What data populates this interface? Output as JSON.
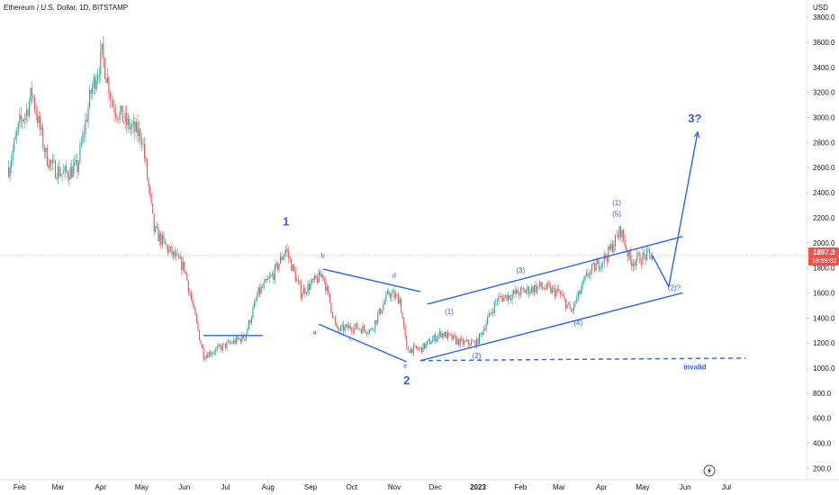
{
  "header": {
    "title": "Ethereum / U.S. Dollar, 1D, BITSTAMP",
    "currency": "USD"
  },
  "price_tag": {
    "price": "1897.3",
    "countdown": "19:59:02"
  },
  "colors": {
    "up": "#26a69a",
    "down": "#ef5350",
    "drawing": "#2962ff",
    "price_tag": "#ef5350"
  },
  "icons": {
    "bottom_marker": "lightning-icon"
  },
  "chart_data": {
    "type": "candlestick",
    "symbol": "Ethereum / U.S. Dollar",
    "interval": "1D",
    "exchange": "BITSTAMP",
    "x_tick_labels": [
      "Feb",
      "Mar",
      "Apr",
      "May",
      "Jun",
      "Jul",
      "Aug",
      "Sep",
      "Oct",
      "Nov",
      "Dec",
      "2023",
      "Feb",
      "Mar",
      "Apr",
      "May",
      "Jun",
      "Jul"
    ],
    "y_tick_labels": [
      "200.0",
      "400.0",
      "600.0",
      "800.0",
      "1000.0",
      "1200.0",
      "1400.0",
      "1600.0",
      "1800.0",
      "2000.0",
      "2200.0",
      "2400.0",
      "2600.0",
      "2800.0",
      "3000.0",
      "3200.0",
      "3400.0",
      "3600.0",
      "3800.0"
    ],
    "ylim": [
      100,
      3900
    ],
    "last_price": 1897.3,
    "grid": false,
    "price_path": [
      [
        "2022-01-24",
        2600
      ],
      [
        "2022-02-01",
        2950
      ],
      [
        "2022-02-06",
        3050
      ],
      [
        "2022-02-10",
        3200
      ],
      [
        "2022-02-20",
        2700
      ],
      [
        "2022-02-25",
        2600
      ],
      [
        "2022-03-05",
        2550
      ],
      [
        "2022-03-15",
        2600
      ],
      [
        "2022-03-25",
        3200
      ],
      [
        "2022-04-02",
        3500
      ],
      [
        "2022-04-10",
        3100
      ],
      [
        "2022-04-20",
        2950
      ],
      [
        "2022-05-01",
        2850
      ],
      [
        "2022-05-10",
        2100
      ],
      [
        "2022-05-20",
        1950
      ],
      [
        "2022-06-01",
        1800
      ],
      [
        "2022-06-15",
        1100
      ],
      [
        "2022-06-25",
        1150
      ],
      [
        "2022-07-05",
        1200
      ],
      [
        "2022-07-15",
        1250
      ],
      [
        "2022-07-25",
        1600
      ],
      [
        "2022-08-05",
        1750
      ],
      [
        "2022-08-14",
        1950
      ],
      [
        "2022-08-25",
        1600
      ],
      [
        "2022-09-10",
        1750
      ],
      [
        "2022-09-20",
        1300
      ],
      [
        "2022-10-01",
        1330
      ],
      [
        "2022-10-15",
        1300
      ],
      [
        "2022-10-28",
        1600
      ],
      [
        "2022-11-05",
        1550
      ],
      [
        "2022-11-10",
        1150
      ],
      [
        "2022-11-20",
        1150
      ],
      [
        "2022-12-05",
        1280
      ],
      [
        "2022-12-20",
        1200
      ],
      [
        "2022-12-31",
        1200
      ],
      [
        "2023-01-15",
        1550
      ],
      [
        "2023-01-30",
        1600
      ],
      [
        "2023-02-15",
        1650
      ],
      [
        "2023-03-01",
        1600
      ],
      [
        "2023-03-10",
        1450
      ],
      [
        "2023-03-22",
        1750
      ],
      [
        "2023-04-05",
        1900
      ],
      [
        "2023-04-15",
        2100
      ],
      [
        "2023-04-22",
        1850
      ],
      [
        "2023-05-05",
        1900
      ],
      [
        "2023-05-08",
        1897.3
      ]
    ],
    "annotations": {
      "elliott_labels": [
        {
          "text": "1",
          "date": "2022-08-14",
          "price": 2140
        },
        {
          "text": "2",
          "date": "2022-11-10",
          "price": 870
        },
        {
          "text": "b",
          "date": "2022-09-10",
          "price": 1880
        },
        {
          "text": "d",
          "date": "2022-11-01",
          "price": 1720
        },
        {
          "text": "a",
          "date": "2022-09-04",
          "price": 1270
        },
        {
          "text": "c",
          "date": "2022-09-30",
          "price": 1220
        },
        {
          "text": "e",
          "date": "2022-11-09",
          "price": 1000
        },
        {
          "text": "(1)",
          "date": "2022-12-11",
          "price": 1430
        },
        {
          "text": "(2)",
          "date": "2022-12-31",
          "price": 1080
        },
        {
          "text": "(3)",
          "date": "2023-02-01",
          "price": 1760
        },
        {
          "text": "(4)",
          "date": "2023-03-15",
          "price": 1340
        },
        {
          "text": "(5)",
          "date": "2023-04-12",
          "price": 2210
        },
        {
          "text": "(1)",
          "date": "2023-04-12",
          "price": 2300
        },
        {
          "text": "(2)?",
          "date": "2023-05-24",
          "price": 1620
        },
        {
          "text": "3?",
          "date": "2023-06-08",
          "price": 2960
        },
        {
          "text": "invalid",
          "date": "2023-06-08",
          "price": 990
        }
      ],
      "lines": [
        {
          "from": [
            "2022-06-15",
            1260
          ],
          "to": [
            "2022-07-28",
            1260
          ],
          "style": "solid"
        },
        {
          "from": [
            "2022-09-07",
            1350
          ],
          "to": [
            "2022-11-10",
            1050
          ],
          "style": "solid"
        },
        {
          "from": [
            "2022-09-10",
            1790
          ],
          "to": [
            "2022-11-20",
            1610
          ],
          "style": "solid"
        },
        {
          "from": [
            "2022-11-20",
            1060
          ],
          "to": [
            "2023-05-30",
            1600
          ],
          "style": "solid"
        },
        {
          "from": [
            "2022-11-25",
            1510
          ],
          "to": [
            "2023-05-30",
            2050
          ],
          "style": "solid"
        },
        {
          "from": [
            "2022-11-20",
            1060
          ],
          "to": [
            "2023-07-15",
            1080
          ],
          "style": "dashed"
        },
        {
          "from": [
            "2023-05-08",
            1900
          ],
          "to": [
            "2023-05-20",
            1650
          ],
          "style": "solid"
        },
        {
          "from": [
            "2023-05-20",
            1650
          ],
          "to": [
            "2023-06-10",
            2880
          ],
          "style": "arrow"
        }
      ]
    }
  }
}
